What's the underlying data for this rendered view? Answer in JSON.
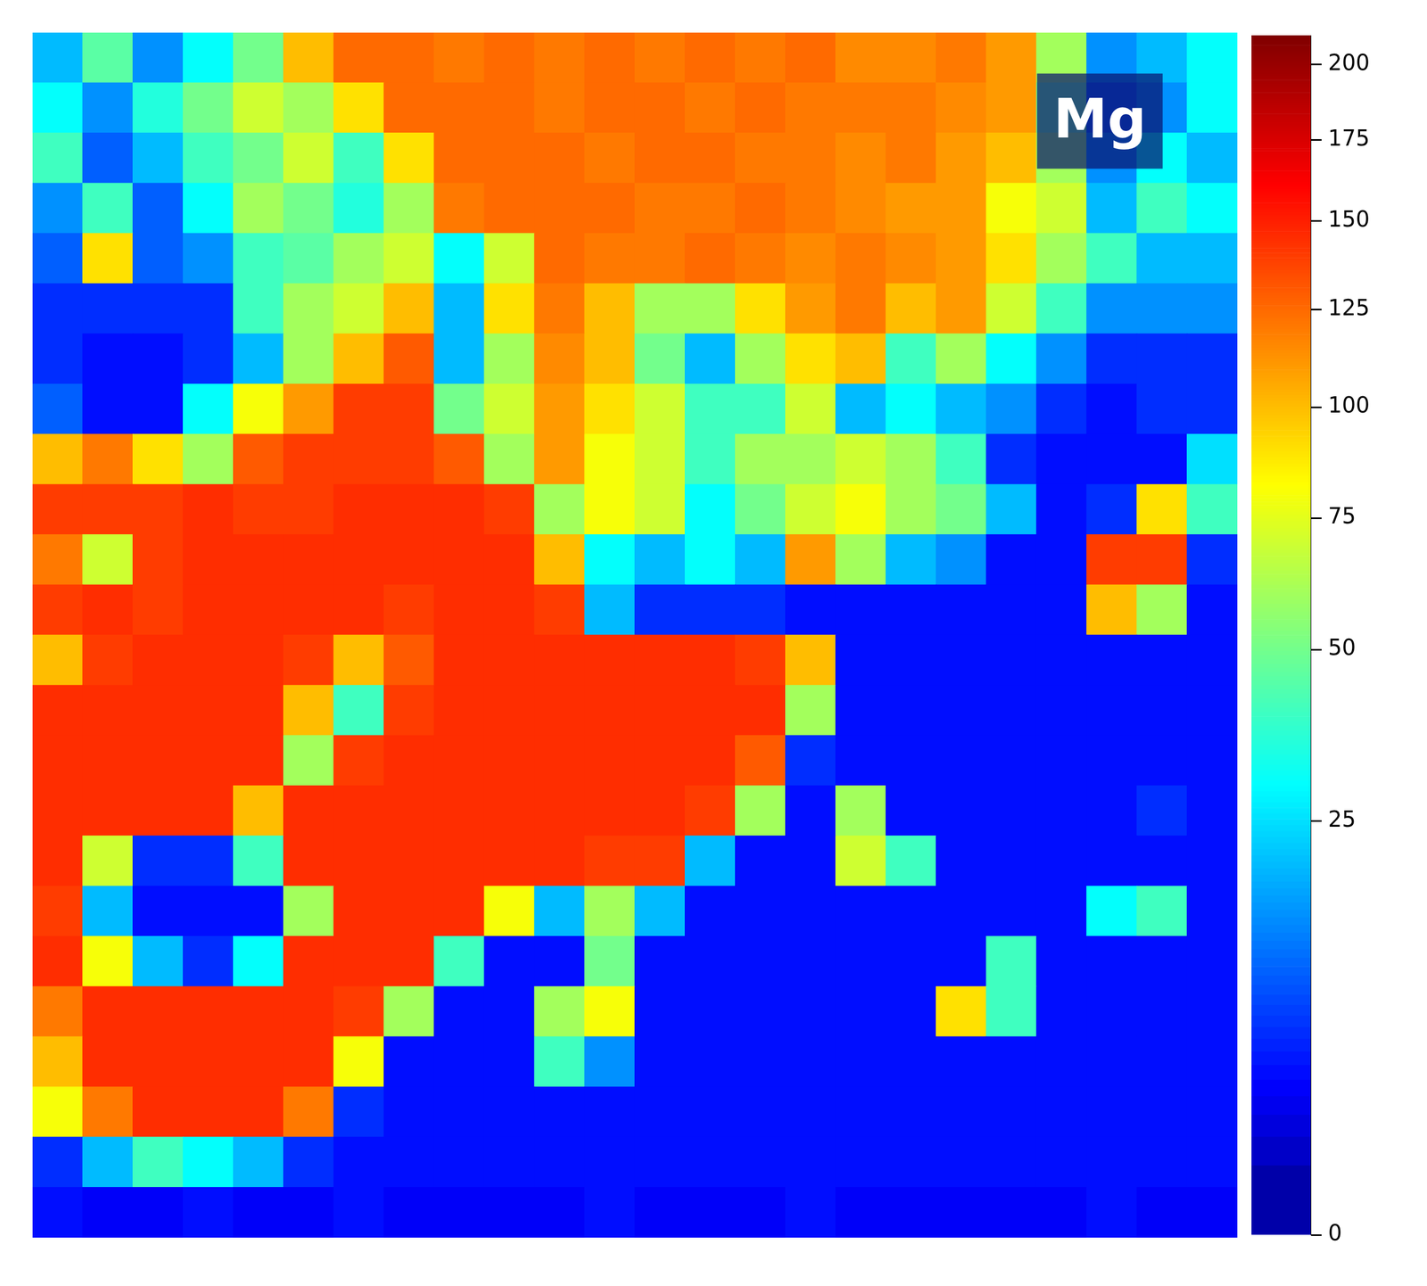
{
  "chart_data": {
    "type": "heatmap",
    "title": "Mg",
    "tick_labels": false,
    "cells": [
      [
        20,
        45,
        15,
        30,
        50,
        100,
        125,
        125,
        120,
        125,
        120,
        125,
        120,
        125,
        120,
        125,
        115,
        115,
        120,
        110,
        60,
        15,
        20,
        30
      ],
      [
        30,
        15,
        35,
        50,
        70,
        60,
        90,
        125,
        125,
        125,
        120,
        125,
        125,
        120,
        125,
        120,
        120,
        120,
        115,
        110,
        50,
        10,
        15,
        30
      ],
      [
        40,
        10,
        20,
        40,
        50,
        70,
        40,
        90,
        125,
        125,
        125,
        120,
        125,
        125,
        120,
        120,
        115,
        120,
        110,
        100,
        60,
        15,
        30,
        20
      ],
      [
        15,
        40,
        10,
        30,
        60,
        50,
        35,
        60,
        120,
        125,
        125,
        125,
        120,
        120,
        125,
        120,
        115,
        110,
        110,
        80,
        70,
        20,
        40,
        30
      ],
      [
        10,
        90,
        10,
        15,
        40,
        45,
        60,
        70,
        30,
        70,
        125,
        120,
        120,
        125,
        120,
        115,
        120,
        115,
        110,
        90,
        60,
        40,
        20,
        20
      ],
      [
        6,
        6,
        6,
        6,
        40,
        60,
        70,
        100,
        20,
        90,
        120,
        100,
        60,
        60,
        90,
        110,
        120,
        100,
        110,
        70,
        40,
        15,
        15,
        15
      ],
      [
        6,
        4,
        4,
        6,
        20,
        60,
        100,
        130,
        20,
        60,
        115,
        100,
        50,
        20,
        60,
        90,
        100,
        40,
        60,
        30,
        15,
        6,
        6,
        6
      ],
      [
        10,
        4,
        4,
        30,
        80,
        110,
        140,
        140,
        50,
        70,
        110,
        90,
        70,
        40,
        40,
        70,
        20,
        30,
        20,
        15,
        6,
        4,
        6,
        6
      ],
      [
        100,
        120,
        90,
        60,
        130,
        140,
        140,
        140,
        130,
        60,
        110,
        80,
        70,
        40,
        60,
        60,
        70,
        60,
        40,
        6,
        4,
        4,
        4,
        25
      ],
      [
        140,
        140,
        140,
        145,
        140,
        140,
        145,
        145,
        145,
        140,
        60,
        80,
        70,
        30,
        50,
        70,
        80,
        60,
        50,
        20,
        4,
        6,
        90,
        40
      ],
      [
        120,
        70,
        140,
        145,
        145,
        145,
        145,
        145,
        145,
        145,
        100,
        30,
        20,
        30,
        20,
        110,
        60,
        20,
        15,
        4,
        4,
        140,
        140,
        6
      ],
      [
        140,
        145,
        140,
        145,
        145,
        145,
        145,
        140,
        145,
        145,
        140,
        20,
        6,
        6,
        6,
        4,
        4,
        4,
        4,
        4,
        4,
        100,
        60,
        4
      ],
      [
        100,
        140,
        145,
        145,
        145,
        140,
        100,
        130,
        145,
        145,
        145,
        145,
        145,
        145,
        140,
        100,
        4,
        4,
        4,
        4,
        4,
        4,
        4,
        4
      ],
      [
        145,
        145,
        145,
        145,
        145,
        100,
        40,
        140,
        145,
        145,
        145,
        145,
        145,
        145,
        145,
        60,
        4,
        4,
        4,
        4,
        4,
        4,
        4,
        4
      ],
      [
        145,
        145,
        145,
        145,
        145,
        60,
        140,
        145,
        145,
        145,
        145,
        145,
        145,
        145,
        130,
        6,
        4,
        4,
        4,
        4,
        4,
        4,
        4,
        4
      ],
      [
        145,
        145,
        145,
        145,
        100,
        145,
        145,
        145,
        145,
        145,
        145,
        145,
        145,
        140,
        60,
        4,
        60,
        4,
        4,
        4,
        4,
        4,
        6,
        4
      ],
      [
        145,
        70,
        6,
        6,
        40,
        145,
        145,
        145,
        145,
        145,
        145,
        140,
        140,
        20,
        4,
        4,
        70,
        40,
        4,
        4,
        4,
        4,
        4,
        4
      ],
      [
        140,
        20,
        4,
        4,
        4,
        60,
        145,
        145,
        145,
        80,
        20,
        60,
        20,
        4,
        4,
        4,
        4,
        4,
        4,
        4,
        4,
        30,
        40,
        4
      ],
      [
        145,
        80,
        20,
        6,
        30,
        145,
        145,
        145,
        40,
        4,
        4,
        50,
        4,
        4,
        4,
        4,
        4,
        4,
        4,
        40,
        4,
        4,
        4,
        4
      ],
      [
        120,
        145,
        145,
        145,
        145,
        145,
        140,
        60,
        4,
        4,
        60,
        80,
        4,
        4,
        4,
        4,
        4,
        4,
        90,
        40,
        4,
        4,
        4,
        4
      ],
      [
        100,
        145,
        145,
        145,
        145,
        145,
        80,
        4,
        4,
        4,
        40,
        15,
        4,
        4,
        4,
        4,
        4,
        4,
        4,
        4,
        4,
        4,
        4,
        4
      ],
      [
        80,
        120,
        145,
        145,
        145,
        120,
        6,
        4,
        4,
        4,
        4,
        4,
        4,
        4,
        4,
        4,
        4,
        4,
        4,
        4,
        4,
        4,
        4,
        4
      ],
      [
        6,
        20,
        40,
        30,
        20,
        6,
        4,
        4,
        4,
        4,
        4,
        4,
        4,
        4,
        4,
        4,
        4,
        4,
        4,
        4,
        4,
        4,
        4,
        4
      ],
      [
        4,
        3,
        3,
        4,
        3,
        3,
        4,
        3,
        3,
        3,
        3,
        4,
        3,
        3,
        3,
        4,
        3,
        3,
        3,
        3,
        3,
        4,
        3,
        3
      ]
    ],
    "colorbar": {
      "range": [
        0,
        210
      ],
      "ticks": [
        0,
        25,
        50,
        75,
        100,
        125,
        150,
        175,
        200
      ]
    }
  }
}
